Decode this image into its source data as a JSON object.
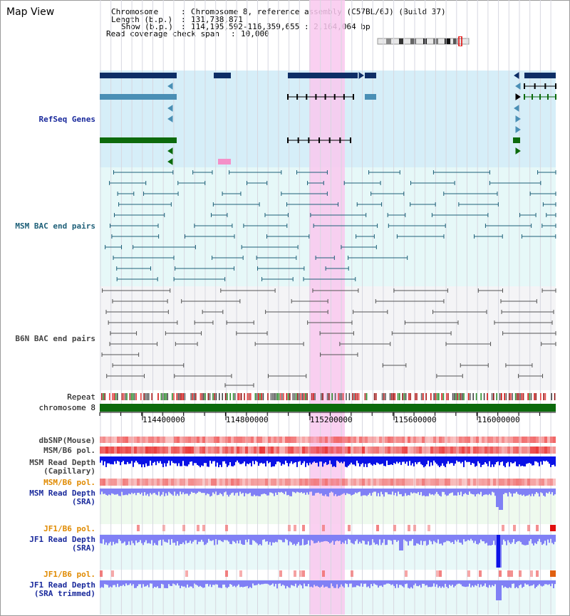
{
  "title": "Map View",
  "header": {
    "chromosome_label": "Chromosome",
    "chromosome_value": "Chromosome 8, reference assembly (C57BL/6J) (Build 37)",
    "length_label": "Length (b.p.)",
    "length_value": "131,738,871",
    "show_label": "Show (b.p.)",
    "show_value": "114,195,592-116,359,655 : 2,164,064 bp",
    "coverage_label": "Read coverage check span",
    "coverage_value": "10,000"
  },
  "tracks": {
    "refseq": "RefSeq Genes",
    "msm_bac": "MSM BAC end pairs",
    "b6n_bac": "B6N BAC end pairs",
    "repeat": "Repeat",
    "chromosome": "chromosome 8",
    "dbsnp": "dbSNP(Mouse)",
    "msm_b6_pol": "MSM/B6 pol.",
    "msm_depth_cap_1": "MSM Read Depth",
    "msm_depth_cap_2": "(Capillary)",
    "msm_b6_pol_2": "MSM/B6 pol.",
    "msm_depth_sra_1": "MSM Read Depth",
    "msm_depth_sra_2": "(SRA)",
    "jf1_b6_pol": "JF1/B6 pol.",
    "jf1_depth_sra_1": "JF1 Read Depth",
    "jf1_depth_sra_2": "(SRA)",
    "jf1_b6_pol_2": "JF1/B6 pol.",
    "jf1_depth_trim_1": "JF1 Read Depth",
    "jf1_depth_trim_2": "(SRA trimmed)"
  },
  "axis_ticks": [
    "114400000",
    "114800000",
    "115200000",
    "115600000",
    "116000000"
  ],
  "colors": {
    "refseq_bg": "#d6eef8",
    "msm_bg": "#e6f8f8",
    "b6n_bg": "#f4f4f6",
    "highlight": "#f9c8ee",
    "gene_navy": "#0e2e66",
    "gene_steel": "#4a8fb5",
    "gene_green": "#0c6a0c",
    "msm_line": "#1d5f78",
    "b6n_line": "#555555",
    "depth_blue": "#0a12e6",
    "depth_light": "#8080f5",
    "pol_red": "#f06060"
  }
}
